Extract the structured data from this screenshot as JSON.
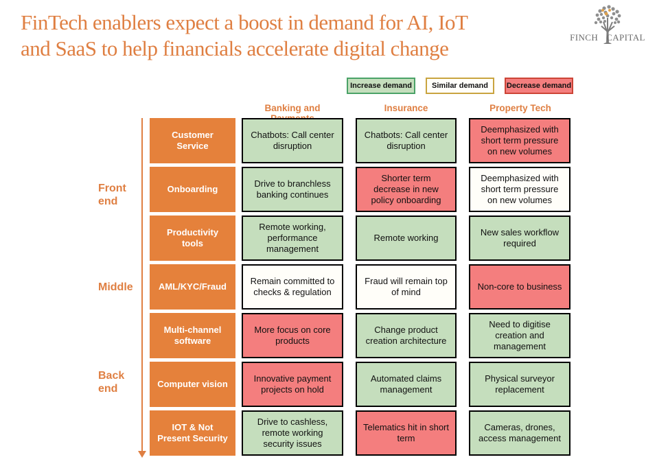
{
  "title": {
    "lines": [
      "FinTech enablers expect a boost in demand for AI, IoT",
      "and SaaS to help financials accelerate digital change"
    ]
  },
  "logo": {
    "left_word": "FINCH",
    "right_word": "CAPITAL"
  },
  "legend": {
    "items": [
      {
        "label": "Increase demand",
        "status": "increase"
      },
      {
        "label": "Similar demand",
        "status": "similar"
      },
      {
        "label": "Decrease demand",
        "status": "decrease"
      }
    ]
  },
  "matrix": {
    "column_headers": [
      "Banking and Payments",
      "Insurance",
      "Property Tech"
    ],
    "side_labels": [
      "Front end",
      "Middle",
      "Back end"
    ],
    "rows": [
      {
        "label": "Customer Service",
        "cells": [
          {
            "text": "Chatbots: Call center disruption",
            "status": "increase"
          },
          {
            "text": "Chatbots: Call center disruption",
            "status": "increase"
          },
          {
            "text": "Deemphasized with short term pressure on new volumes",
            "status": "decrease"
          }
        ]
      },
      {
        "label": "Onboarding",
        "cells": [
          {
            "text": "Drive to branchless banking continues",
            "status": "increase"
          },
          {
            "text": "Shorter term decrease in new policy onboarding",
            "status": "decrease"
          },
          {
            "text": "Deemphasized with short term pressure on new volumes",
            "status": "similar"
          }
        ]
      },
      {
        "label": "Productivity tools",
        "cells": [
          {
            "text": "Remote working, performance management",
            "status": "increase"
          },
          {
            "text": "Remote working",
            "status": "increase"
          },
          {
            "text": "New sales workflow required",
            "status": "increase"
          }
        ]
      },
      {
        "label": "AML/KYC/Fraud",
        "cells": [
          {
            "text": "Remain committed to checks & regulation",
            "status": "similar"
          },
          {
            "text": "Fraud will remain top of mind",
            "status": "similar"
          },
          {
            "text": "Non-core to business",
            "status": "decrease"
          }
        ]
      },
      {
        "label": "Multi-channel software",
        "cells": [
          {
            "text": "More focus on core products",
            "status": "decrease"
          },
          {
            "text": "Change product creation architecture",
            "status": "increase"
          },
          {
            "text": "Need to digitise creation and management",
            "status": "increase"
          }
        ]
      },
      {
        "label": "Computer vision",
        "cells": [
          {
            "text": "Innovative payment projects on hold",
            "status": "decrease"
          },
          {
            "text": "Automated claims management",
            "status": "increase"
          },
          {
            "text": "Physical surveyor replacement",
            "status": "increase"
          }
        ]
      },
      {
        "label": "IOT & Not Present Security",
        "cells": [
          {
            "text": "Drive to cashless, remote working security issues",
            "status": "increase"
          },
          {
            "text": "Telematics hit in short term",
            "status": "decrease"
          },
          {
            "text": "Cameras, drones, access management",
            "status": "increase"
          }
        ]
      }
    ]
  },
  "colors": {
    "accent_orange": "#DF7F42",
    "title_orange": "#DB7A3B",
    "row_label_bg": "#E5813B",
    "increase_bg": "#C5DEBD",
    "increase_border": "#4AA267",
    "similar_bg": "#FFFEF9",
    "similar_border": "#C9A43F",
    "decrease_bg": "#F47E7E",
    "decrease_border": "#CC4436"
  }
}
